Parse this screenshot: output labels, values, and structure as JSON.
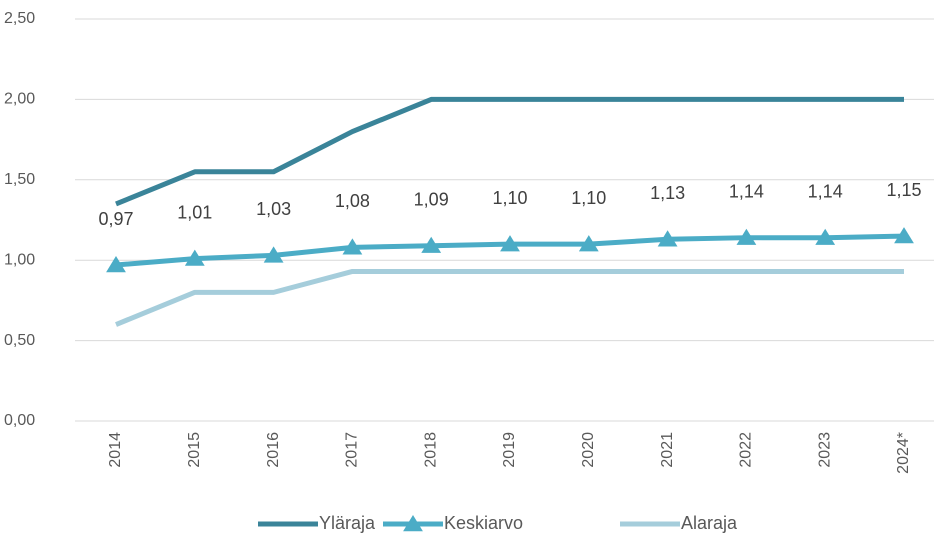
{
  "chart_data": {
    "type": "line",
    "categories": [
      "2014",
      "2015",
      "2016",
      "2017",
      "2018",
      "2019",
      "2020",
      "2021",
      "2022",
      "2023",
      "2024*"
    ],
    "series": [
      {
        "name": "Yläraja",
        "color": "#3a8499",
        "values": [
          1.35,
          1.55,
          1.55,
          1.8,
          2.0,
          2.0,
          2.0,
          2.0,
          2.0,
          2.0,
          2.0
        ]
      },
      {
        "name": "Keskiarvo",
        "color": "#4bacc6",
        "marker": "triangle",
        "values": [
          0.97,
          1.01,
          1.03,
          1.08,
          1.09,
          1.1,
          1.1,
          1.13,
          1.14,
          1.14,
          1.15
        ],
        "value_labels": [
          "0,97",
          "1,01",
          "1,03",
          "1,08",
          "1,09",
          "1,10",
          "1,10",
          "1,13",
          "1,14",
          "1,14",
          "1,15"
        ]
      },
      {
        "name": "Alaraja",
        "color": "#a5cddb",
        "values": [
          0.6,
          0.8,
          0.8,
          0.93,
          0.93,
          0.93,
          0.93,
          0.93,
          0.93,
          0.93,
          0.93
        ]
      }
    ],
    "ylim": [
      0,
      2.5
    ],
    "yticks": [
      {
        "value": 0,
        "label": "0,00"
      },
      {
        "value": 0.5,
        "label": "0,50"
      },
      {
        "value": 1,
        "label": "1,00"
      },
      {
        "value": 1.5,
        "label": "1,50"
      },
      {
        "value": 2,
        "label": "2,00"
      },
      {
        "value": 2.5,
        "label": "2,50"
      }
    ],
    "grid": true,
    "legend": "bottom"
  }
}
